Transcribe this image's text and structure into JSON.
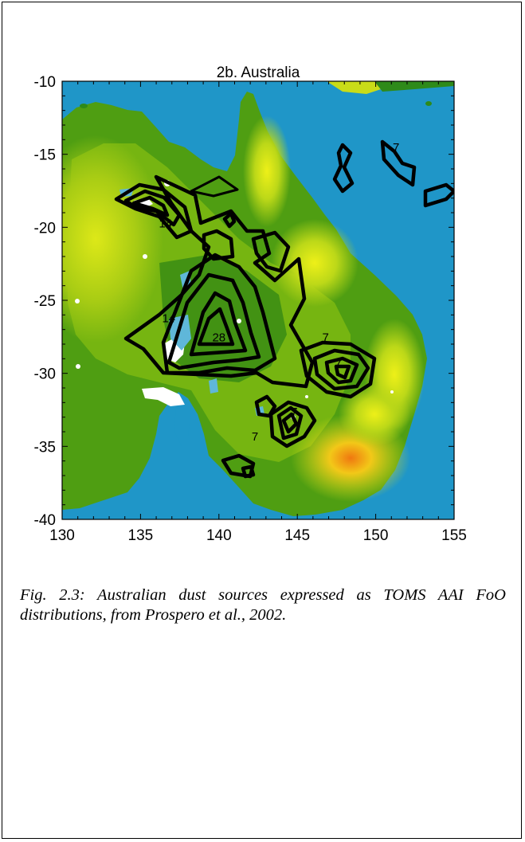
{
  "figure": {
    "title": "2b. Australia",
    "caption": "Fig. 2.3: Australian dust sources expressed as TOMS AAI FoO distributions, from Prospero et al., 2002."
  },
  "axes": {
    "x_ticks": [
      "130",
      "135",
      "140",
      "145",
      "150",
      "155"
    ],
    "y_ticks": [
      "-10",
      "-15",
      "-20",
      "-25",
      "-30",
      "-35",
      "-40"
    ],
    "x_range": [
      130,
      155
    ],
    "y_range": [
      -40,
      -10
    ]
  },
  "contour_labels": [
    {
      "text": "7",
      "lon": 151.3,
      "lat": -14.8
    },
    {
      "text": "7",
      "lon": 146.8,
      "lat": -27.8
    },
    {
      "text": "7",
      "lon": 147.6,
      "lat": -29.6
    },
    {
      "text": "7",
      "lon": 144.8,
      "lat": -32.9
    },
    {
      "text": "7",
      "lon": 142.3,
      "lat": -34.6
    },
    {
      "text": "28",
      "lon": 140.0,
      "lat": -27.8
    },
    {
      "text": "14",
      "lon": 136.6,
      "lat": -20.0
    },
    {
      "text": "14",
      "lon": 136.8,
      "lat": -26.5
    }
  ],
  "colors": {
    "ocean": "#1f96c8",
    "land_low": "#2e8a1a",
    "land_mid": "#6fb010",
    "land_high": "#c9dc18",
    "peak": "#f2e820",
    "hot": "#f0a010",
    "contour": "#000000",
    "lake": "#ffffff"
  }
}
